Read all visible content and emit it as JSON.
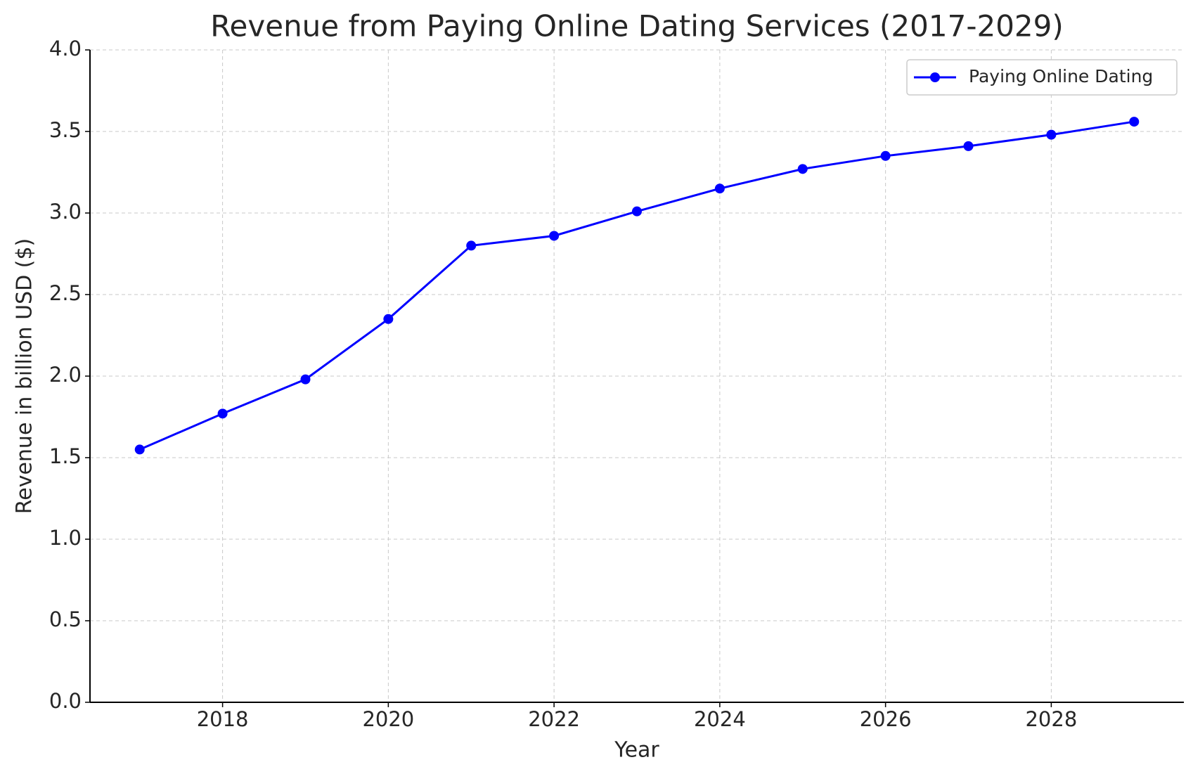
{
  "chart_data": {
    "type": "line",
    "title": "Revenue from Paying Online Dating Services (2017-2029)",
    "x_label": "Year",
    "y_label": "Revenue in billion USD ($)",
    "x": [
      2017,
      2018,
      2019,
      2020,
      2021,
      2022,
      2023,
      2024,
      2025,
      2026,
      2027,
      2028,
      2029
    ],
    "series": [
      {
        "name": "Paying Online Dating",
        "color": "#0000ff",
        "values": [
          1.55,
          1.77,
          1.98,
          2.35,
          2.8,
          2.86,
          3.01,
          3.15,
          3.27,
          3.35,
          3.41,
          3.48,
          3.56
        ]
      }
    ],
    "xlim": [
      2016.4,
      2029.6
    ],
    "xticks": [
      2018,
      2020,
      2022,
      2024,
      2026,
      2028
    ],
    "ylim": [
      0,
      4
    ],
    "yticks": [
      {
        "value": 0,
        "label": "0.0"
      },
      {
        "value": 0.5,
        "label": "0.5"
      },
      {
        "value": 1,
        "label": "1.0"
      },
      {
        "value": 1.5,
        "label": "1.5"
      },
      {
        "value": 2,
        "label": "2.0"
      },
      {
        "value": 2.5,
        "label": "2.5"
      },
      {
        "value": 3,
        "label": "3.0"
      },
      {
        "value": 3.5,
        "label": "3.5"
      },
      {
        "value": 4,
        "label": "4.0"
      }
    ],
    "grid": true,
    "legend": "upper right"
  }
}
